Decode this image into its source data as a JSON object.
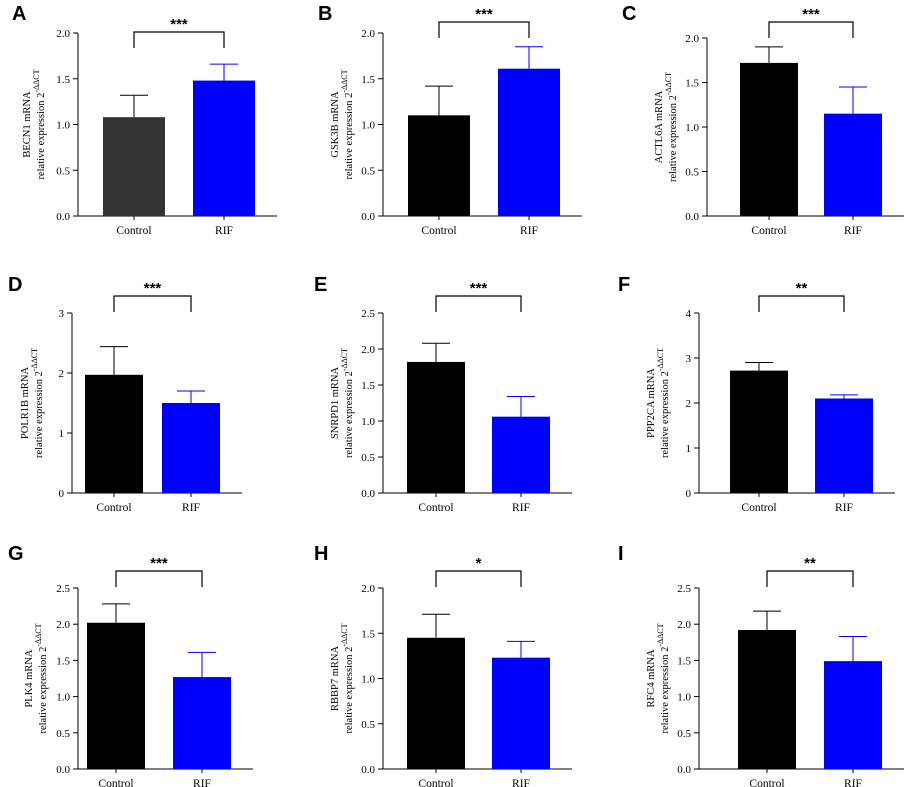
{
  "chart_data": [
    {
      "panel": "A",
      "type": "bar",
      "categories": [
        "Control",
        "RIF"
      ],
      "values": [
        1.08,
        1.48
      ],
      "errors": [
        0.24,
        0.18
      ],
      "colors": [
        "#333333",
        "#0000ff"
      ],
      "ylabel_line1": "BECN1 mRNA",
      "ylabel_line2": "relative expression 2",
      "ylabel_sup": "-ΔΔCT",
      "ylim": [
        0,
        2.0
      ],
      "yticks": [
        "0.0",
        "0.5",
        "1.0",
        "1.5",
        "2.0"
      ],
      "significance": "***"
    },
    {
      "panel": "B",
      "type": "bar",
      "categories": [
        "Control",
        "RIF"
      ],
      "values": [
        1.1,
        1.61
      ],
      "errors": [
        0.32,
        0.24
      ],
      "colors": [
        "#000000",
        "#0000ff"
      ],
      "ylabel_line1": "GSK3B mRNA",
      "ylabel_line2": "relative expression 2",
      "ylabel_sup": "-ΔΔCT",
      "ylim": [
        0,
        2.0
      ],
      "yticks": [
        "0.0",
        "0.5",
        "1.0",
        "1.5",
        "2.0"
      ],
      "significance": "***"
    },
    {
      "panel": "C",
      "type": "bar",
      "categories": [
        "Control",
        "RIF"
      ],
      "values": [
        1.72,
        1.15
      ],
      "errors": [
        0.18,
        0.3
      ],
      "colors": [
        "#000000",
        "#0000ff"
      ],
      "ylabel_line1": "ACTL6A mRNA",
      "ylabel_line2": "relative expression 2",
      "ylabel_sup": "-ΔΔCT",
      "ylim": [
        0,
        2.0
      ],
      "yticks": [
        "0.0",
        "0.5",
        "1.0",
        "1.5",
        "2.0"
      ],
      "significance": "***"
    },
    {
      "panel": "D",
      "type": "bar",
      "categories": [
        "Control",
        "RIF"
      ],
      "values": [
        1.97,
        1.5
      ],
      "errors": [
        0.47,
        0.2
      ],
      "colors": [
        "#000000",
        "#0000ff"
      ],
      "ylabel_line1": "POLR1B mRNA",
      "ylabel_line2": "relative expression 2",
      "ylabel_sup": "-ΔΔCT",
      "ylim": [
        0,
        3
      ],
      "yticks": [
        "0",
        "1",
        "2",
        "3"
      ],
      "significance": "***"
    },
    {
      "panel": "E",
      "type": "bar",
      "categories": [
        "Control",
        "RIF"
      ],
      "values": [
        1.82,
        1.06
      ],
      "errors": [
        0.26,
        0.28
      ],
      "colors": [
        "#000000",
        "#0000ff"
      ],
      "ylabel_line1": "SNRPD1 mRNA",
      "ylabel_line2": "relative expression 2",
      "ylabel_sup": "-ΔΔCT",
      "ylim": [
        0,
        2.5
      ],
      "yticks": [
        "0.0",
        "0.5",
        "1.0",
        "1.5",
        "2.0",
        "2.5"
      ],
      "significance": "***"
    },
    {
      "panel": "F",
      "type": "bar",
      "categories": [
        "Control",
        "RIF"
      ],
      "values": [
        2.72,
        2.1
      ],
      "errors": [
        0.18,
        0.08
      ],
      "colors": [
        "#000000",
        "#0000ff"
      ],
      "ylabel_line1": "PPP2CA mRNA",
      "ylabel_line2": "relative expression 2",
      "ylabel_sup": "-ΔΔCT",
      "ylim": [
        0,
        4
      ],
      "yticks": [
        "0",
        "1",
        "2",
        "3",
        "4"
      ],
      "significance": "**"
    },
    {
      "panel": "G",
      "type": "bar",
      "categories": [
        "Control",
        "RIF"
      ],
      "values": [
        2.02,
        1.27
      ],
      "errors": [
        0.26,
        0.34
      ],
      "colors": [
        "#000000",
        "#0000ff"
      ],
      "ylabel_line1": "PLK4 mRNA",
      "ylabel_line2": "relative expression 2",
      "ylabel_sup": "-ΔΔCT",
      "ylim": [
        0,
        2.5
      ],
      "yticks": [
        "0.0",
        "0.5",
        "1.0",
        "1.5",
        "2.0",
        "2.5"
      ],
      "significance": "***"
    },
    {
      "panel": "H",
      "type": "bar",
      "categories": [
        "Control",
        "RIF"
      ],
      "values": [
        1.45,
        1.23
      ],
      "errors": [
        0.26,
        0.18
      ],
      "colors": [
        "#000000",
        "#0000ff"
      ],
      "ylabel_line1": "RBBP7 mRNA",
      "ylabel_line2": "relative expression 2",
      "ylabel_sup": "-ΔΔCT",
      "ylim": [
        0,
        2.0
      ],
      "yticks": [
        "0.0",
        "0.5",
        "1.0",
        "1.5",
        "2.0"
      ],
      "significance": "*"
    },
    {
      "panel": "I",
      "type": "bar",
      "categories": [
        "Control",
        "RIF"
      ],
      "values": [
        1.92,
        1.49
      ],
      "errors": [
        0.26,
        0.34
      ],
      "colors": [
        "#000000",
        "#0000ff"
      ],
      "ylabel_line1": "RFC4 mRNA",
      "ylabel_line2": "relative expression 2",
      "ylabel_sup": "-ΔΔCT",
      "ylim": [
        0,
        2.5
      ],
      "yticks": [
        "0.0",
        "0.5",
        "1.0",
        "1.5",
        "2.0",
        "2.5"
      ],
      "significance": "**"
    }
  ]
}
